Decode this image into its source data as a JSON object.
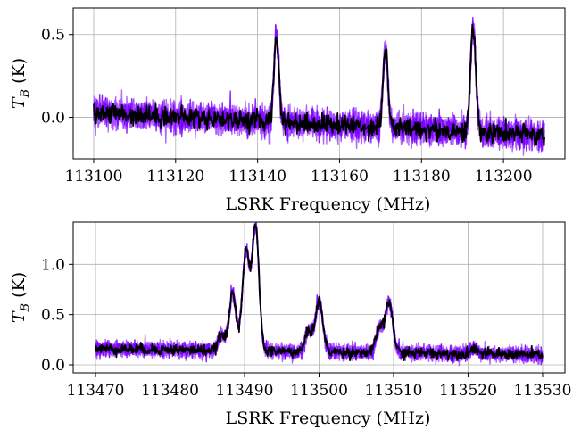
{
  "chart_data": [
    {
      "type": "line",
      "xlabel": "LSRK Frequency (MHz)",
      "ylabel": "T_B (K)",
      "xlim": [
        113095,
        113215
      ],
      "ylim": [
        -0.25,
        0.66
      ],
      "xticks": [
        113100,
        113120,
        113140,
        113160,
        113180,
        113200
      ],
      "yticks": [
        0.0,
        0.5
      ],
      "ytick_labels": [
        "0.0",
        "0.5"
      ],
      "grid": true,
      "x_range": [
        113100,
        113210
      ],
      "baseline": {
        "start": 0.03,
        "end": -0.11
      },
      "noise_sigma": 0.04,
      "lines": [
        {
          "center": 113144.6,
          "amplitude": 0.52,
          "width": 0.6
        },
        {
          "center": 113171.2,
          "amplitude": 0.47,
          "width": 0.6
        },
        {
          "center": 113192.6,
          "amplitude": 0.62,
          "width": 0.65
        }
      ],
      "series": [
        {
          "color": "#a64dff",
          "kind": "samples",
          "count": 6
        },
        {
          "color": "#7a00ff",
          "kind": "samples",
          "count": 2
        },
        {
          "color": "#000000",
          "kind": "data",
          "count": 1
        }
      ]
    },
    {
      "type": "line",
      "xlabel": "LSRK Frequency (MHz)",
      "ylabel": "T_B (K)",
      "xlim": [
        113467,
        113533
      ],
      "ylim": [
        -0.08,
        1.42
      ],
      "xticks": [
        113470,
        113480,
        113490,
        113500,
        113510,
        113520,
        113530
      ],
      "yticks": [
        0.0,
        0.5,
        1.0
      ],
      "ytick_labels": [
        "0.0",
        "0.5",
        "1.0"
      ],
      "grid": true,
      "x_range": [
        113470,
        113530
      ],
      "baseline": {
        "start": 0.16,
        "end": 0.1
      },
      "noise_sigma": 0.035,
      "lines": [
        {
          "center": 113486.9,
          "amplitude": 0.15,
          "width": 0.45
        },
        {
          "center": 113488.4,
          "amplitude": 0.58,
          "width": 0.45
        },
        {
          "center": 113490.2,
          "amplitude": 0.98,
          "width": 0.5
        },
        {
          "center": 113491.5,
          "amplitude": 1.22,
          "width": 0.45
        },
        {
          "center": 113498.6,
          "amplitude": 0.2,
          "width": 0.45
        },
        {
          "center": 113500.0,
          "amplitude": 0.5,
          "width": 0.5
        },
        {
          "center": 113508.1,
          "amplitude": 0.25,
          "width": 0.45
        },
        {
          "center": 113509.4,
          "amplitude": 0.5,
          "width": 0.5
        },
        {
          "center": 113520.8,
          "amplitude": 0.06,
          "width": 0.4
        }
      ],
      "series": [
        {
          "color": "#a64dff",
          "kind": "samples",
          "count": 6
        },
        {
          "color": "#7a00ff",
          "kind": "samples",
          "count": 2
        },
        {
          "color": "#000000",
          "kind": "data",
          "count": 1
        }
      ]
    }
  ]
}
